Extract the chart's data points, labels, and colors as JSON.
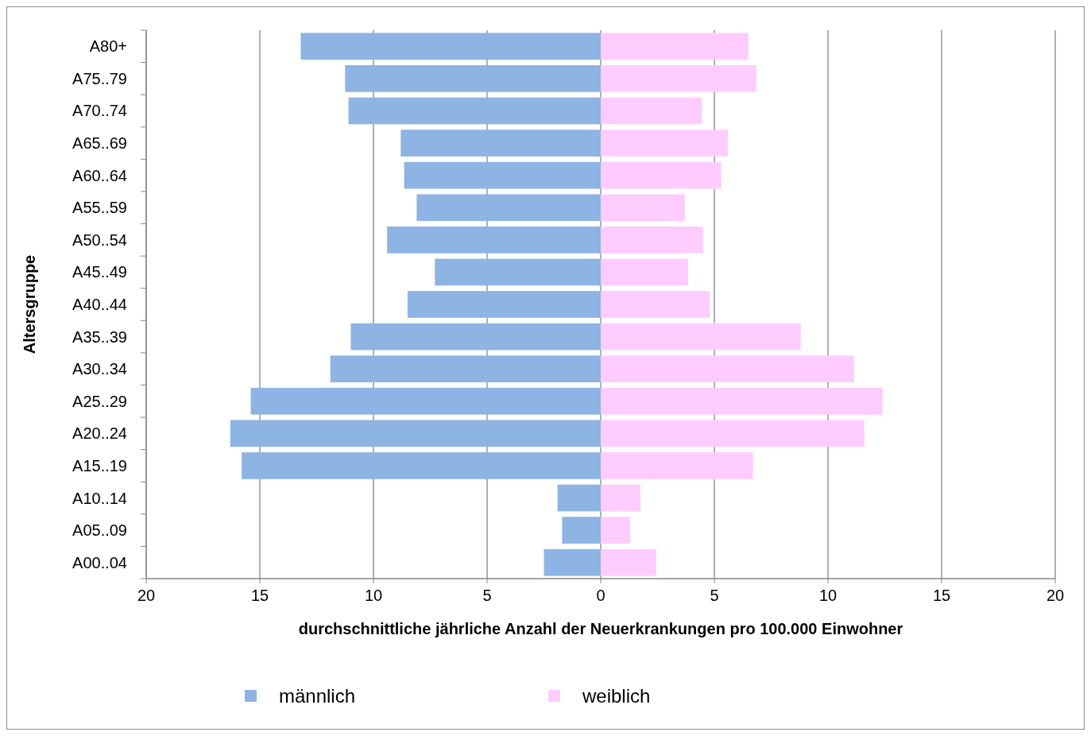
{
  "chart_data": {
    "type": "bar",
    "orientation": "horizontal",
    "stacked": true,
    "xlabel": "durchschnittliche jährliche Anzahl der Neuerkrankungen pro 100.000 Einwohner",
    "ylabel": "Altersgruppe",
    "categories": [
      "A80+",
      "A75..79",
      "A70..74",
      "A65..69",
      "A60..64",
      "A55..59",
      "A50..54",
      "A45..49",
      "A40..44",
      "A35..39",
      "A30..34",
      "A25..29",
      "A20..24",
      "A15..19",
      "A10..14",
      "A05..09",
      "A00..04"
    ],
    "series": [
      {
        "name": "männlich",
        "color": "#8eb4e3",
        "values": [
          -13.2,
          -11.25,
          -11.1,
          -8.8,
          -8.65,
          -8.1,
          -9.4,
          -7.3,
          -8.5,
          -11.0,
          -11.9,
          -15.4,
          -16.3,
          -15.8,
          -1.9,
          -1.7,
          -2.5
        ]
      },
      {
        "name": "weiblich",
        "color": "#ffccff",
        "values": [
          6.5,
          6.85,
          4.45,
          5.6,
          5.3,
          3.7,
          4.5,
          3.85,
          4.8,
          8.8,
          11.15,
          12.4,
          11.6,
          6.7,
          1.75,
          1.3,
          2.45
        ]
      }
    ],
    "xlim": [
      -20,
      20
    ],
    "xticks": [
      {
        "value": -20,
        "label": "20"
      },
      {
        "value": -15,
        "label": "15"
      },
      {
        "value": -10,
        "label": "10"
      },
      {
        "value": -5,
        "label": "5"
      },
      0,
      5,
      10,
      15,
      20
    ],
    "grid": "x",
    "legend": "bottom"
  }
}
